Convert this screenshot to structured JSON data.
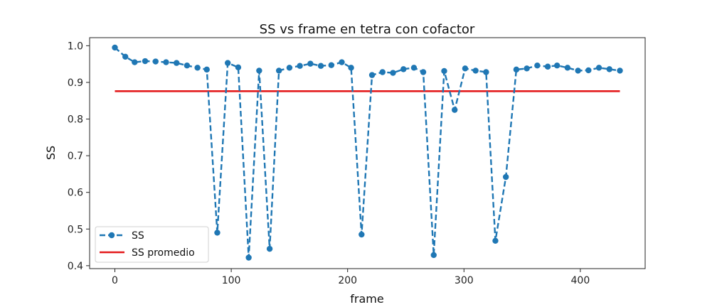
{
  "chart_data": {
    "type": "line",
    "title": "SS vs frame en tetra con cofactor",
    "xlabel": "frame",
    "ylabel": "SS",
    "xlim": [
      -21.7,
      455.7
    ],
    "ylim": [
      0.392,
      1.022
    ],
    "xticks": [
      0,
      100,
      200,
      300,
      400
    ],
    "yticks": [
      0.4,
      0.5,
      0.6,
      0.7,
      0.8,
      0.9,
      1.0
    ],
    "xtick_labels": [
      "0",
      "100",
      "200",
      "300",
      "400"
    ],
    "ytick_labels": [
      "0.4",
      "0.5",
      "0.6",
      "0.7",
      "0.8",
      "0.9",
      "1.0"
    ],
    "grid": false,
    "legend_position": "lower-left",
    "series": [
      {
        "name": "SS",
        "style": "dashed-with-markers",
        "color": "#1f77b4",
        "x": [
          0,
          9,
          17,
          26,
          35,
          44,
          53,
          62,
          71,
          79,
          88,
          97,
          106,
          115,
          124,
          133,
          141,
          150,
          159,
          168,
          177,
          186,
          195,
          203,
          212,
          221,
          230,
          239,
          248,
          257,
          265,
          274,
          283,
          292,
          301,
          310,
          319,
          327,
          336,
          345,
          354,
          363,
          372,
          380,
          389,
          398,
          407,
          416,
          425,
          434
        ],
        "y": [
          0.995,
          0.97,
          0.955,
          0.958,
          0.957,
          0.955,
          0.953,
          0.946,
          0.94,
          0.935,
          0.49,
          0.953,
          0.941,
          0.422,
          0.932,
          0.446,
          0.932,
          0.94,
          0.945,
          0.951,
          0.945,
          0.947,
          0.955,
          0.94,
          0.485,
          0.92,
          0.928,
          0.926,
          0.936,
          0.94,
          0.928,
          0.429,
          0.931,
          0.825,
          0.938,
          0.932,
          0.928,
          0.468,
          0.642,
          0.935,
          0.938,
          0.946,
          0.943,
          0.946,
          0.94,
          0.932,
          0.933,
          0.94,
          0.936,
          0.932
        ]
      },
      {
        "name": "SS promedio",
        "style": "solid",
        "color": "#e41a1c",
        "x": [
          0,
          434
        ],
        "y": [
          0.876,
          0.876
        ]
      }
    ]
  }
}
